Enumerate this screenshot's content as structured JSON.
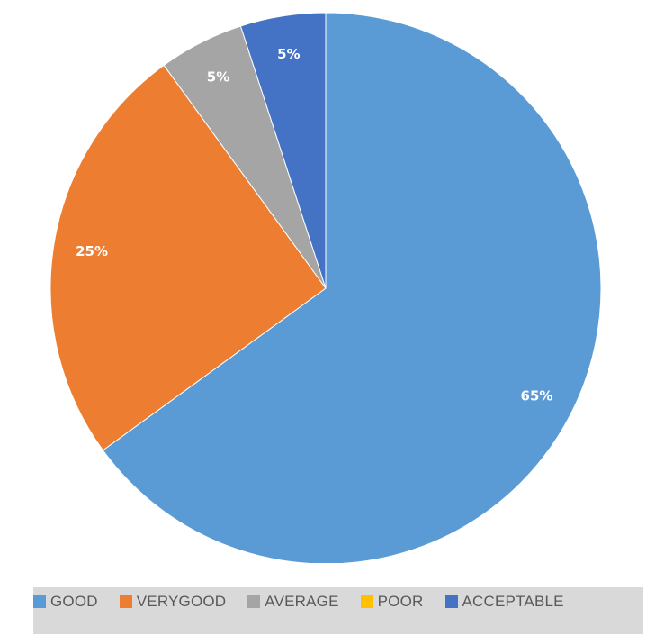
{
  "chart_data": {
    "type": "pie",
    "categories": [
      "GOOD",
      "VERYGOOD",
      "AVERAGE",
      "POOR",
      "ACCEPTABLE"
    ],
    "values": [
      65,
      25,
      5,
      0,
      5
    ],
    "data_labels": [
      "65%",
      "25%",
      "5%",
      "",
      "5%"
    ],
    "colors": [
      "#5b9bd5",
      "#ed7d31",
      "#a5a5a5",
      "#ffc000",
      "#4472c4"
    ],
    "legend_position": "bottom"
  }
}
